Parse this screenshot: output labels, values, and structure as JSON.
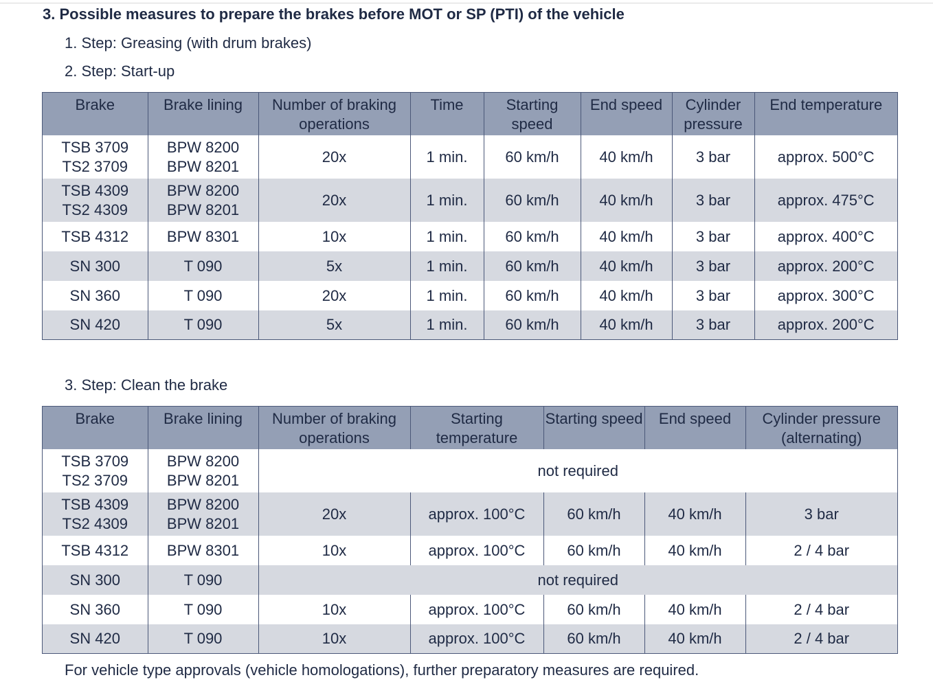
{
  "page": {
    "title": "3.  Possible measures to prepare the brakes before MOT or SP (PTI) of the vehicle",
    "step1": "1. Step: Greasing (with drum brakes)",
    "step2": "2. Step: Start-up",
    "step3": "3. Step: Clean the brake",
    "note": "For vehicle type approvals (vehicle homologations), further preparatory measures are required."
  },
  "startup_table": {
    "headers": [
      "Brake",
      "Brake lining",
      "Number of braking operations",
      "Time",
      "Starting speed",
      "End speed",
      "Cylinder pressure",
      "End temperature"
    ],
    "rows": [
      {
        "brake": "TSB 3709\nTS2 3709",
        "lining": "BPW 8200\nBPW 8201",
        "ops": "20x",
        "time": "1 min.",
        "start": "60 km/h",
        "end": "40 km/h",
        "pressure": "3 bar",
        "temp": "approx. 500°C"
      },
      {
        "brake": "TSB 4309\nTS2 4309",
        "lining": "BPW 8200\nBPW 8201",
        "ops": "20x",
        "time": "1 min.",
        "start": "60 km/h",
        "end": "40 km/h",
        "pressure": "3 bar",
        "temp": "approx. 475°C"
      },
      {
        "brake": "TSB 4312",
        "lining": "BPW 8301",
        "ops": "10x",
        "time": "1 min.",
        "start": "60 km/h",
        "end": "40 km/h",
        "pressure": "3 bar",
        "temp": "approx. 400°C"
      },
      {
        "brake": "SN 300",
        "lining": "T 090",
        "ops": "5x",
        "time": "1 min.",
        "start": "60 km/h",
        "end": "40 km/h",
        "pressure": "3 bar",
        "temp": "approx. 200°C"
      },
      {
        "brake": "SN 360",
        "lining": "T 090",
        "ops": "20x",
        "time": "1 min.",
        "start": "60 km/h",
        "end": "40 km/h",
        "pressure": "3 bar",
        "temp": "approx. 300°C"
      },
      {
        "brake": "SN 420",
        "lining": "T 090",
        "ops": "5x",
        "time": "1 min.",
        "start": "60 km/h",
        "end": "40 km/h",
        "pressure": "3 bar",
        "temp": "approx. 200°C"
      }
    ]
  },
  "clean_table": {
    "headers": [
      "Brake",
      "Brake lining",
      "Number of braking operations",
      "Starting temperature",
      "Starting speed",
      "End speed",
      "Cylinder pressure (alternating)"
    ],
    "rows": [
      {
        "brake": "TSB 3709\nTS2 3709",
        "lining": "BPW 8200\nBPW 8201",
        "span": "not required"
      },
      {
        "brake": "TSB 4309\nTS2 4309",
        "lining": "BPW 8200\nBPW 8201",
        "ops": "20x",
        "start_temp": "approx. 100°C",
        "start": "60 km/h",
        "end": "40 km/h",
        "pressure": "3 bar"
      },
      {
        "brake": "TSB 4312",
        "lining": "BPW 8301",
        "ops": "10x",
        "start_temp": "approx. 100°C",
        "start": "60 km/h",
        "end": "40 km/h",
        "pressure": "2 / 4 bar"
      },
      {
        "brake": "SN 300",
        "lining": "T 090",
        "span": "not required"
      },
      {
        "brake": "SN 360",
        "lining": "T 090",
        "ops": "10x",
        "start_temp": "approx. 100°C",
        "start": "60 km/h",
        "end": "40 km/h",
        "pressure": "2 / 4 bar"
      },
      {
        "brake": "SN 420",
        "lining": "T 090",
        "ops": "10x",
        "start_temp": "approx. 100°C",
        "start": "60 km/h",
        "end": "40 km/h",
        "pressure": "2 / 4 bar"
      }
    ]
  }
}
